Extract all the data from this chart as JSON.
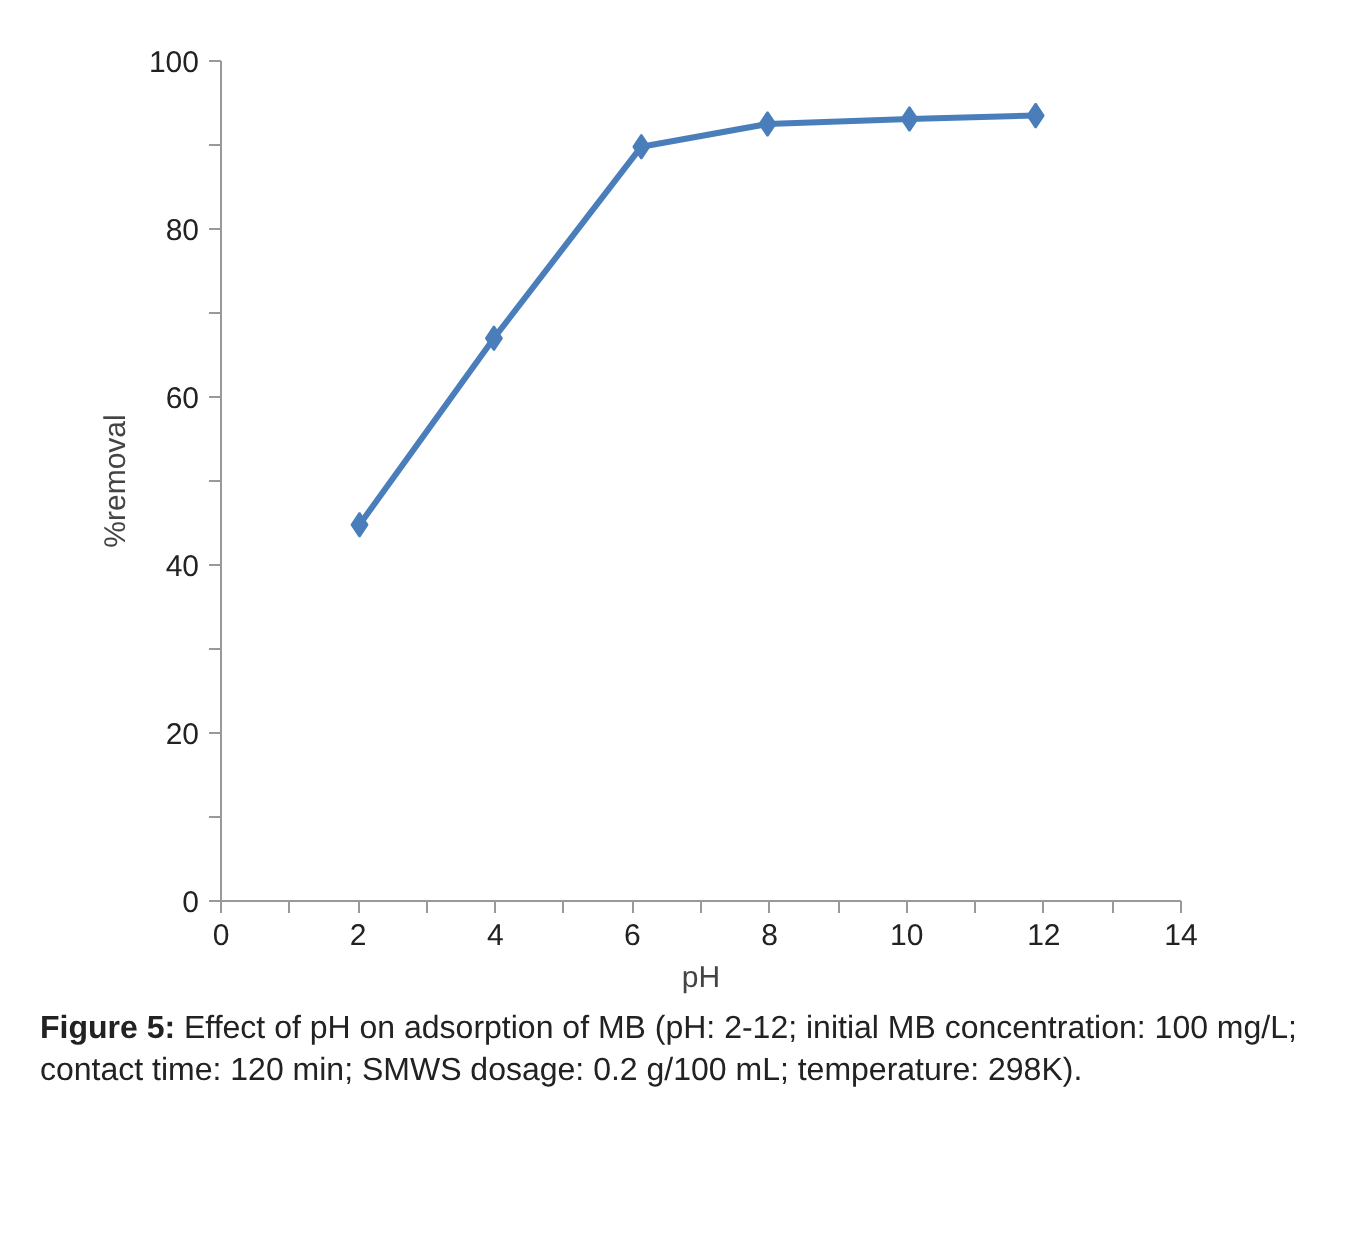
{
  "chart_data": {
    "type": "line",
    "xlabel": "pH",
    "ylabel": "%removal",
    "x": [
      2.02,
      3.98,
      6.13,
      7.97,
      10.04,
      11.88
    ],
    "series": [
      {
        "color": "#4a7ebb",
        "values": [
          44.8,
          67.0,
          89.8,
          92.5,
          93.1,
          93.5
        ]
      }
    ],
    "xlim": [
      0,
      14
    ],
    "xticks": [
      0,
      2,
      4,
      6,
      8,
      10,
      12,
      14
    ],
    "ylim": [
      0,
      100
    ],
    "yticks": [
      0,
      20,
      40,
      60,
      80,
      100
    ],
    "marker": "diamond",
    "line_style": "solid",
    "grid": false,
    "annotations": [
      "Figure 5: Effect of pH on adsorption of MB (pH: 2-12; initial MB concentration: 100 mg/L; contact time: 120 min; SMWS dosage: 0.2 g/100 mL; temperature: 298K)."
    ]
  }
}
